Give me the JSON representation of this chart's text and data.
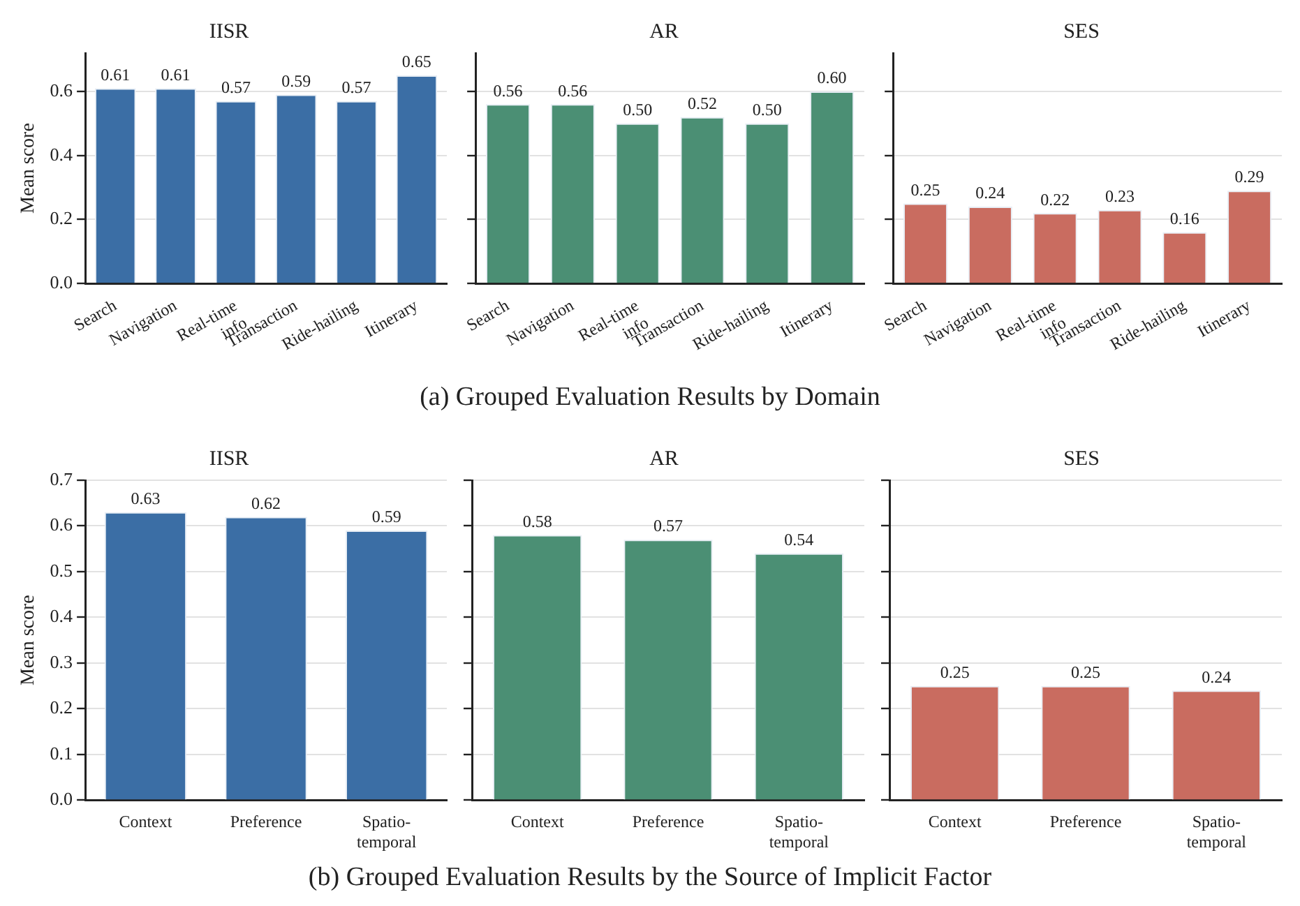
{
  "chart_data": [
    {
      "type": "bar",
      "title": "IISR",
      "ylabel": "Mean score",
      "categories": [
        "Search",
        "Navigation",
        "Real-time\ninfo",
        "Transaction",
        "Ride-hailing",
        "Itinerary"
      ],
      "values": [
        0.61,
        0.61,
        0.57,
        0.59,
        0.57,
        0.65
      ],
      "value_labels": [
        "0.61",
        "0.61",
        "0.57",
        "0.59",
        "0.57",
        "0.65"
      ],
      "color": "#3b6ea5",
      "ylim": [
        0,
        0.72
      ],
      "yticks": [
        {
          "value": 0,
          "label": "0.0"
        },
        0.2,
        0.4,
        0.6
      ],
      "grid": "y",
      "annotations": [
        "(a) Grouped Evaluation Results by Domain"
      ]
    },
    {
      "type": "bar",
      "title": "AR",
      "categories": [
        "Search",
        "Navigation",
        "Real-time\ninfo",
        "Transaction",
        "Ride-hailing",
        "Itinerary"
      ],
      "values": [
        0.56,
        0.56,
        0.5,
        0.52,
        0.5,
        0.6
      ],
      "value_labels": [
        "0.56",
        "0.56",
        "0.50",
        "0.52",
        "0.50",
        "0.60"
      ],
      "color": "#4b8f74",
      "ylim": [
        0,
        0.72
      ],
      "yticks": [
        {
          "value": 0,
          "label": null
        },
        {
          "value": 0.2,
          "label": null
        },
        {
          "value": 0.4,
          "label": null
        },
        {
          "value": 0.6,
          "label": null
        }
      ],
      "grid": "y",
      "tick_labels": "x"
    },
    {
      "type": "bar",
      "title": "SES",
      "categories": [
        "Search",
        "Navigation",
        "Real-time\ninfo",
        "Transaction",
        "Ride-hailing",
        "Itinerary"
      ],
      "values": [
        0.25,
        0.24,
        0.22,
        0.23,
        0.16,
        0.29
      ],
      "value_labels": [
        "0.25",
        "0.24",
        "0.22",
        "0.23",
        "0.16",
        "0.29"
      ],
      "color": "#c96c60",
      "ylim": [
        0,
        0.72
      ],
      "yticks": [
        {
          "value": 0,
          "label": null
        },
        {
          "value": 0.2,
          "label": null
        },
        {
          "value": 0.4,
          "label": null
        },
        {
          "value": 0.6,
          "label": null
        }
      ],
      "grid": "y",
      "tick_labels": "x"
    },
    {
      "type": "bar",
      "title": "IISR",
      "ylabel": "Mean score",
      "categories": [
        "Context",
        "Preference",
        "Spatio-\ntemporal"
      ],
      "values": [
        0.63,
        0.62,
        0.59
      ],
      "value_labels": [
        "0.63",
        "0.62",
        "0.59"
      ],
      "color": "#3b6ea5",
      "ylim": [
        0,
        0.7
      ],
      "yticks": [
        {
          "value": 0,
          "label": "0.0"
        },
        0.1,
        0.2,
        0.3,
        0.4,
        0.5,
        0.6,
        0.7
      ],
      "grid": "y",
      "annotations": [
        "(b) Grouped Evaluation Results by the Source of Implicit Factor"
      ]
    },
    {
      "type": "bar",
      "title": "AR",
      "categories": [
        "Context",
        "Preference",
        "Spatio-\ntemporal"
      ],
      "values": [
        0.58,
        0.57,
        0.54
      ],
      "value_labels": [
        "0.58",
        "0.57",
        "0.54"
      ],
      "color": "#4b8f74",
      "ylim": [
        0,
        0.7
      ],
      "yticks": [
        0,
        0.1,
        0.2,
        0.3,
        0.4,
        0.5,
        0.6,
        0.7
      ],
      "grid": "y",
      "tick_labels": "x"
    },
    {
      "type": "bar",
      "title": "SES",
      "categories": [
        "Context",
        "Preference",
        "Spatio-\ntemporal"
      ],
      "values": [
        0.25,
        0.25,
        0.24
      ],
      "value_labels": [
        "0.25",
        "0.25",
        "0.24"
      ],
      "color": "#c96c60",
      "ylim": [
        0,
        0.7
      ],
      "yticks": [
        0,
        0.1,
        0.2,
        0.3,
        0.4,
        0.5,
        0.6,
        0.7
      ],
      "grid": "y",
      "tick_labels": "x"
    }
  ]
}
